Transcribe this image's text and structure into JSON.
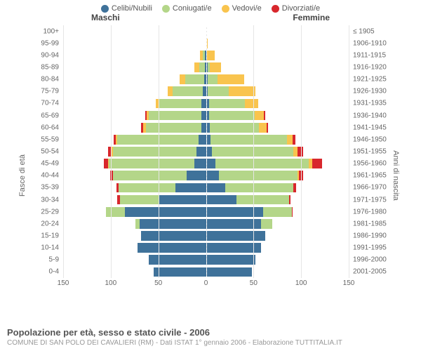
{
  "legend": [
    {
      "label": "Celibi/Nubili",
      "color": "#3f729a"
    },
    {
      "label": "Coniugati/e",
      "color": "#b4d689"
    },
    {
      "label": "Vedovi/e",
      "color": "#f9c44e"
    },
    {
      "label": "Divorziati/e",
      "color": "#d8272d"
    }
  ],
  "headers": {
    "male": "Maschi",
    "female": "Femmine"
  },
  "axes": {
    "left_title": "Fasce di età",
    "right_title": "Anni di nascita",
    "xmax": 150,
    "xticks": [
      150,
      100,
      50,
      0,
      50,
      100,
      150
    ]
  },
  "footer": {
    "title": "Popolazione per età, sesso e stato civile - 2006",
    "sub": "COMUNE DI SAN POLO DEI CAVALIERI (RM) - Dati ISTAT 1° gennaio 2006 - Elaborazione TUTTITALIA.IT"
  },
  "colors": {
    "grid": "#e5e5e5",
    "bg": "#ffffff"
  },
  "rows": [
    {
      "age": "100+",
      "birth": "≤ 1905",
      "m": {
        "c": 0,
        "co": 0,
        "v": 0,
        "d": 0
      },
      "f": {
        "c": 0,
        "co": 0,
        "v": 1,
        "d": 0
      }
    },
    {
      "age": "95-99",
      "birth": "1906-1910",
      "m": {
        "c": 0,
        "co": 0,
        "v": 0,
        "d": 0
      },
      "f": {
        "c": 0,
        "co": 0,
        "v": 2,
        "d": 0
      }
    },
    {
      "age": "90-94",
      "birth": "1911-1915",
      "m": {
        "c": 1,
        "co": 2,
        "v": 3,
        "d": 0
      },
      "f": {
        "c": 1,
        "co": 0,
        "v": 8,
        "d": 0
      }
    },
    {
      "age": "85-89",
      "birth": "1916-1920",
      "m": {
        "c": 1,
        "co": 6,
        "v": 5,
        "d": 0
      },
      "f": {
        "c": 2,
        "co": 2,
        "v": 12,
        "d": 0
      }
    },
    {
      "age": "80-84",
      "birth": "1921-1925",
      "m": {
        "c": 2,
        "co": 20,
        "v": 6,
        "d": 0
      },
      "f": {
        "c": 2,
        "co": 10,
        "v": 28,
        "d": 0
      }
    },
    {
      "age": "75-79",
      "birth": "1926-1930",
      "m": {
        "c": 3,
        "co": 32,
        "v": 5,
        "d": 0
      },
      "f": {
        "c": 2,
        "co": 22,
        "v": 28,
        "d": 0
      }
    },
    {
      "age": "70-74",
      "birth": "1931-1935",
      "m": {
        "c": 5,
        "co": 45,
        "v": 3,
        "d": 0
      },
      "f": {
        "c": 3,
        "co": 38,
        "v": 14,
        "d": 0
      }
    },
    {
      "age": "65-69",
      "birth": "1936-1940",
      "m": {
        "c": 5,
        "co": 55,
        "v": 2,
        "d": 2
      },
      "f": {
        "c": 3,
        "co": 48,
        "v": 10,
        "d": 1
      }
    },
    {
      "age": "60-64",
      "birth": "1941-1945",
      "m": {
        "c": 5,
        "co": 58,
        "v": 3,
        "d": 2
      },
      "f": {
        "c": 4,
        "co": 52,
        "v": 8,
        "d": 1
      }
    },
    {
      "age": "55-59",
      "birth": "1946-1950",
      "m": {
        "c": 8,
        "co": 85,
        "v": 2,
        "d": 2
      },
      "f": {
        "c": 5,
        "co": 80,
        "v": 6,
        "d": 3
      }
    },
    {
      "age": "50-54",
      "birth": "1951-1955",
      "m": {
        "c": 10,
        "co": 88,
        "v": 1,
        "d": 4
      },
      "f": {
        "c": 6,
        "co": 86,
        "v": 4,
        "d": 6
      }
    },
    {
      "age": "45-49",
      "birth": "1956-1960",
      "m": {
        "c": 12,
        "co": 90,
        "v": 1,
        "d": 4
      },
      "f": {
        "c": 10,
        "co": 98,
        "v": 4,
        "d": 10
      }
    },
    {
      "age": "40-44",
      "birth": "1961-1965",
      "m": {
        "c": 20,
        "co": 78,
        "v": 0,
        "d": 3
      },
      "f": {
        "c": 14,
        "co": 82,
        "v": 2,
        "d": 4
      }
    },
    {
      "age": "35-39",
      "birth": "1966-1970",
      "m": {
        "c": 32,
        "co": 60,
        "v": 0,
        "d": 2
      },
      "f": {
        "c": 20,
        "co": 72,
        "v": 0,
        "d": 3
      }
    },
    {
      "age": "30-34",
      "birth": "1971-1975",
      "m": {
        "c": 50,
        "co": 40,
        "v": 0,
        "d": 3
      },
      "f": {
        "c": 32,
        "co": 55,
        "v": 0,
        "d": 2
      }
    },
    {
      "age": "25-29",
      "birth": "1976-1980",
      "m": {
        "c": 85,
        "co": 20,
        "v": 0,
        "d": 0
      },
      "f": {
        "c": 60,
        "co": 30,
        "v": 0,
        "d": 1
      }
    },
    {
      "age": "20-24",
      "birth": "1981-1985",
      "m": {
        "c": 70,
        "co": 4,
        "v": 0,
        "d": 0
      },
      "f": {
        "c": 58,
        "co": 12,
        "v": 0,
        "d": 0
      }
    },
    {
      "age": "15-19",
      "birth": "1986-1990",
      "m": {
        "c": 68,
        "co": 0,
        "v": 0,
        "d": 0
      },
      "f": {
        "c": 62,
        "co": 0,
        "v": 0,
        "d": 0
      }
    },
    {
      "age": "10-14",
      "birth": "1991-1995",
      "m": {
        "c": 72,
        "co": 0,
        "v": 0,
        "d": 0
      },
      "f": {
        "c": 58,
        "co": 0,
        "v": 0,
        "d": 0
      }
    },
    {
      "age": "5-9",
      "birth": "1996-2000",
      "m": {
        "c": 60,
        "co": 0,
        "v": 0,
        "d": 0
      },
      "f": {
        "c": 52,
        "co": 0,
        "v": 0,
        "d": 0
      }
    },
    {
      "age": "0-4",
      "birth": "2001-2005",
      "m": {
        "c": 55,
        "co": 0,
        "v": 0,
        "d": 0
      },
      "f": {
        "c": 48,
        "co": 0,
        "v": 0,
        "d": 0
      }
    }
  ]
}
